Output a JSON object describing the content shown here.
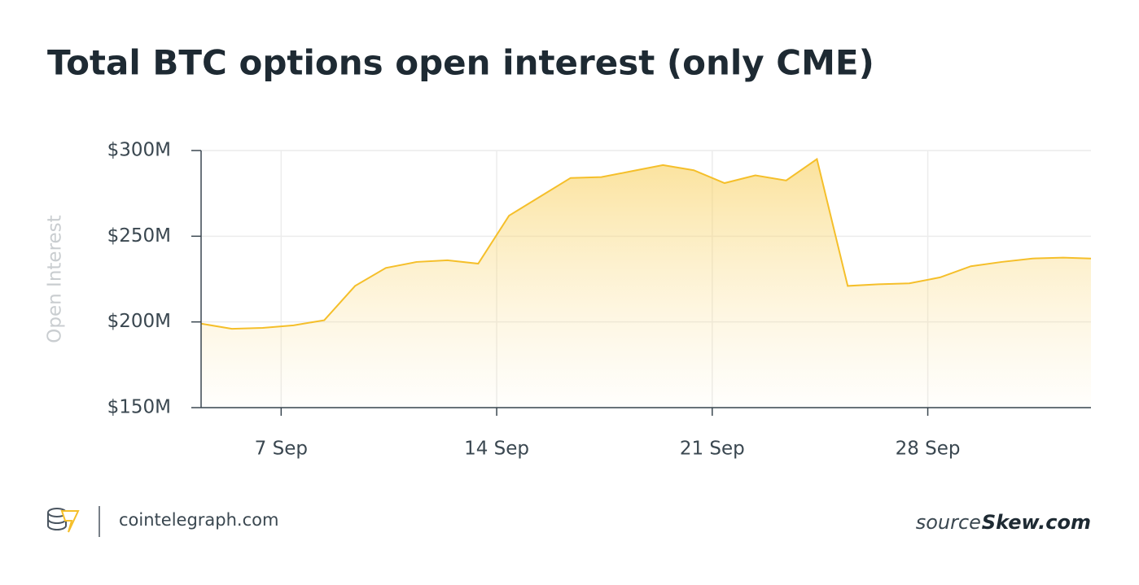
{
  "chart_data": {
    "type": "area",
    "title": "Total BTC options open interest (only CME)",
    "y_label": "Open Interest",
    "color": "#f5bf2a",
    "grid": true,
    "x": [
      4.4,
      5.4,
      6.4,
      7.4,
      8.4,
      9.4,
      10.4,
      11.4,
      12.4,
      13.4,
      14.4,
      15.4,
      16.4,
      17.4,
      18.4,
      19.4,
      20.4,
      21.4,
      22.4,
      23.4,
      24.4,
      25.4,
      26.4,
      27.4,
      28.4,
      29.4,
      30.4,
      31.4,
      32.4,
      33.3
    ],
    "values": [
      199,
      196,
      196.5,
      198,
      201,
      221,
      231.5,
      235,
      236,
      234,
      262,
      273,
      284,
      284.5,
      288,
      291.5,
      288.5,
      281,
      285.5,
      282.5,
      295,
      221,
      222,
      222.5,
      226,
      232.5,
      235,
      237,
      237.5,
      237
    ],
    "xlim": [
      4.4,
      33.3
    ],
    "xticks": [
      {
        "value": 7,
        "label": "7 Sep"
      },
      {
        "value": 14,
        "label": "14 Sep"
      },
      {
        "value": 21,
        "label": "21 Sep"
      },
      {
        "value": 28,
        "label": "28 Sep"
      }
    ],
    "ylim": [
      150,
      300
    ],
    "yticks": [
      {
        "value": 150,
        "label": "$150M"
      },
      {
        "value": 200,
        "label": "$200M"
      },
      {
        "value": 250,
        "label": "$250M"
      },
      {
        "value": 300,
        "label": "$300M"
      }
    ]
  },
  "footer": {
    "site": "cointelegraph.com",
    "source_prefix": "source:",
    "source": "Skew.com"
  }
}
